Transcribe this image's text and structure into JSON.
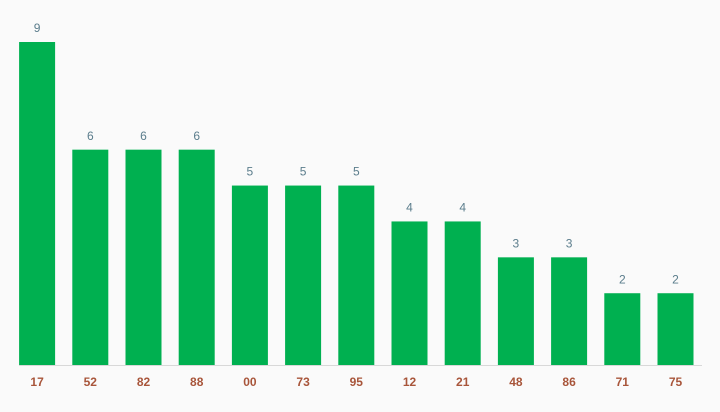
{
  "chart_data": {
    "type": "bar",
    "categories": [
      "17",
      "52",
      "82",
      "88",
      "00",
      "73",
      "95",
      "12",
      "21",
      "48",
      "86",
      "71",
      "75"
    ],
    "values": [
      9,
      6,
      6,
      6,
      5,
      5,
      5,
      4,
      4,
      3,
      3,
      2,
      2
    ],
    "color": "#00b050"
  }
}
